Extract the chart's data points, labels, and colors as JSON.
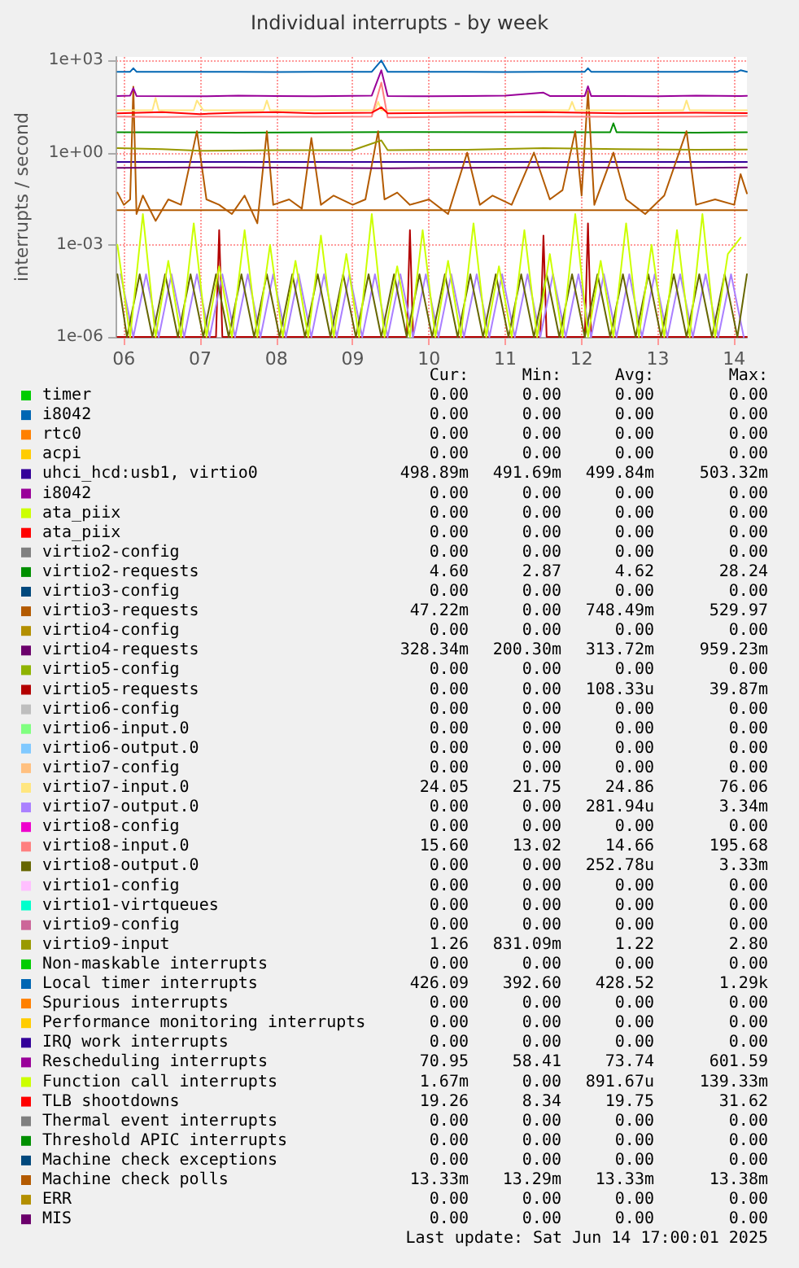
{
  "chart_data": {
    "type": "line",
    "title": "Individual interrupts - by week",
    "ylabel": "interrupts / second",
    "log": true,
    "grid": true,
    "legend": "bottom",
    "marker": "none",
    "line_style": "solid",
    "xlim": [
      "2025-06-05T21:40",
      "2025-06-14T04:00"
    ],
    "xticks": [
      {
        "value": "2025-06-06T00:00",
        "label": "06"
      },
      {
        "value": "2025-06-07T00:00",
        "label": "07"
      },
      {
        "value": "2025-06-08T00:00",
        "label": "08"
      },
      {
        "value": "2025-06-09T00:00",
        "label": "09"
      },
      {
        "value": "2025-06-10T00:00",
        "label": "10"
      },
      {
        "value": "2025-06-11T00:00",
        "label": "11"
      },
      {
        "value": "2025-06-12T00:00",
        "label": "12"
      },
      {
        "value": "2025-06-13T00:00",
        "label": "13"
      },
      {
        "value": "2025-06-14T00:00",
        "label": "14"
      }
    ],
    "ylim": [
      1e-06,
      1300
    ],
    "yticks": [
      {
        "value": 1e-06,
        "label": "1e-06"
      },
      {
        "value": 0.001,
        "label": "1e-03"
      },
      {
        "value": 1,
        "label": "1e+00"
      },
      {
        "value": 1000,
        "label": "1e+03"
      }
    ],
    "series": [
      {
        "name": "timer",
        "color": "#00cc00"
      },
      {
        "name": "i8042",
        "color": "#0066b3"
      },
      {
        "name": "rtc0",
        "color": "#ff8000"
      },
      {
        "name": "acpi",
        "color": "#ffcc00"
      },
      {
        "name": "uhci_hcd:usb1, virtio0",
        "color": "#330099",
        "x": [
          "2025-06-05T22:00",
          "2025-06-09T12:00",
          "2025-06-14T04:00"
        ],
        "values": [
          0.5,
          0.5,
          0.5
        ]
      },
      {
        "name": "i8042",
        "color": "#990099"
      },
      {
        "name": "ata_piix",
        "color": "#ccff00"
      },
      {
        "name": "ata_piix",
        "color": "#ff0000"
      },
      {
        "name": "virtio2-config",
        "color": "#808080"
      },
      {
        "name": "virtio2-requests",
        "color": "#008f00",
        "x": [
          "2025-06-05T22:00",
          "2025-06-07T12:00",
          "2025-06-09T12:00",
          "2025-06-11T12:00",
          "2025-06-12T09:00",
          "2025-06-12T10:00",
          "2025-06-12T11:00",
          "2025-06-13T12:00",
          "2025-06-14T04:00"
        ],
        "values": [
          4.6,
          4.5,
          4.7,
          4.6,
          4.6,
          9,
          4.6,
          4.5,
          4.6
        ]
      },
      {
        "name": "virtio3-config",
        "color": "#00487d"
      },
      {
        "name": "virtio3-requests",
        "color": "#b35a00",
        "x": [
          "2025-06-05T22:00",
          "2025-06-06T00:00",
          "2025-06-06T02:00",
          "2025-06-06T03:00",
          "2025-06-06T04:00",
          "2025-06-06T06:00",
          "2025-06-06T10:00",
          "2025-06-06T14:00",
          "2025-06-06T18:00",
          "2025-06-06T23:00",
          "2025-06-07T02:00",
          "2025-06-07T06:00",
          "2025-06-07T10:00",
          "2025-06-07T14:00",
          "2025-06-07T18:00",
          "2025-06-07T21:00",
          "2025-06-07T23:00",
          "2025-06-08T04:00",
          "2025-06-08T08:00",
          "2025-06-08T11:00",
          "2025-06-08T14:00",
          "2025-06-08T18:00",
          "2025-06-09T00:00",
          "2025-06-09T04:00",
          "2025-06-09T08:00",
          "2025-06-09T10:00",
          "2025-06-09T14:00",
          "2025-06-09T18:00",
          "2025-06-10T00:00",
          "2025-06-10T06:00",
          "2025-06-10T12:00",
          "2025-06-10T16:00",
          "2025-06-10T20:00",
          "2025-06-11T02:00",
          "2025-06-11T09:00",
          "2025-06-11T14:00",
          "2025-06-11T18:00",
          "2025-06-11T22:00",
          "2025-06-12T00:00",
          "2025-06-12T02:00",
          "2025-06-12T04:00",
          "2025-06-12T10:00",
          "2025-06-12T14:00",
          "2025-06-12T20:00",
          "2025-06-13T02:00",
          "2025-06-13T09:00",
          "2025-06-13T12:00",
          "2025-06-13T18:00",
          "2025-06-14T00:00",
          "2025-06-14T02:00",
          "2025-06-14T04:00"
        ],
        "values": [
          0.05,
          0.02,
          0.03,
          140,
          0.01,
          0.04,
          0.006,
          0.03,
          0.02,
          5,
          0.03,
          0.02,
          0.01,
          0.04,
          0.005,
          5,
          0.02,
          0.03,
          0.015,
          3,
          0.02,
          0.04,
          0.02,
          0.03,
          5,
          0.03,
          0.05,
          0.02,
          0.03,
          0.01,
          1,
          0.02,
          0.04,
          0.02,
          1,
          0.03,
          0.06,
          5,
          0.04,
          100,
          0.02,
          1,
          0.03,
          0.01,
          0.04,
          5,
          0.02,
          0.03,
          0.02,
          0.2,
          0.047
        ]
      },
      {
        "name": "virtio4-config",
        "color": "#b38f00"
      },
      {
        "name": "virtio4-requests",
        "color": "#6b006b",
        "x": [
          "2025-06-05T22:00",
          "2025-06-07T12:00",
          "2025-06-09T12:00",
          "2025-06-11T12:00",
          "2025-06-13T12:00",
          "2025-06-14T04:00"
        ],
        "values": [
          0.32,
          0.33,
          0.31,
          0.33,
          0.32,
          0.33
        ]
      },
      {
        "name": "virtio5-config",
        "color": "#8fb300"
      },
      {
        "name": "virtio5-requests",
        "color": "#b30000",
        "x": [
          "2025-06-05T22:00",
          "2025-06-07T05:00",
          "2025-06-07T06:00",
          "2025-06-07T07:00",
          "2025-06-09T17:00",
          "2025-06-09T18:00",
          "2025-06-09T19:00",
          "2025-06-11T11:00",
          "2025-06-11T12:00",
          "2025-06-11T13:00",
          "2025-06-12T01:00",
          "2025-06-12T02:00",
          "2025-06-12T03:00",
          "2025-06-14T04:00"
        ],
        "values": [
          1e-06,
          1e-06,
          0.003,
          1e-06,
          1e-06,
          0.003,
          1e-06,
          1e-06,
          0.002,
          1e-06,
          1e-06,
          0.005,
          1e-06,
          1e-06
        ]
      },
      {
        "name": "virtio6-config",
        "color": "#bebebe"
      },
      {
        "name": "virtio6-input.0",
        "color": "#80ff80"
      },
      {
        "name": "virtio6-output.0",
        "color": "#80c9ff"
      },
      {
        "name": "virtio7-config",
        "color": "#ffc080"
      },
      {
        "name": "virtio7-input.0",
        "color": "#ffe680",
        "x": [
          "2025-06-05T22:00",
          "2025-06-06T09:00",
          "2025-06-06T10:00",
          "2025-06-06T11:00",
          "2025-06-06T22:00",
          "2025-06-06T23:00",
          "2025-06-07T01:00",
          "2025-06-07T20:00",
          "2025-06-07T21:00",
          "2025-06-07T22:00",
          "2025-06-08T12:00",
          "2025-06-09T07:00",
          "2025-06-09T08:00",
          "2025-06-09T09:00",
          "2025-06-10T12:00",
          "2025-06-11T20:00",
          "2025-06-11T21:00",
          "2025-06-11T22:00",
          "2025-06-13T08:00",
          "2025-06-13T09:00",
          "2025-06-13T10:00",
          "2025-06-14T04:00"
        ],
        "values": [
          24,
          24,
          60,
          24,
          24,
          50,
          24,
          24,
          50,
          24,
          24,
          24,
          45,
          24,
          24,
          24,
          45,
          24,
          24,
          50,
          24,
          24.05
        ]
      },
      {
        "name": "virtio7-output.0",
        "color": "#aa80ff",
        "x": [
          "2025-06-05T23:00",
          "2025-06-06T03:00",
          "2025-06-06T07:00",
          "2025-06-06T11:00",
          "2025-06-06T15:00",
          "2025-06-06T19:00",
          "2025-06-06T23:00",
          "2025-06-07T03:00",
          "2025-06-07T07:00",
          "2025-06-07T11:00",
          "2025-06-07T15:00",
          "2025-06-07T19:00",
          "2025-06-07T23:00",
          "2025-06-08T03:00",
          "2025-06-08T07:00",
          "2025-06-08T11:00",
          "2025-06-08T15:00",
          "2025-06-08T19:00",
          "2025-06-08T23:00",
          "2025-06-09T03:00",
          "2025-06-09T07:00",
          "2025-06-09T11:00",
          "2025-06-09T15:00",
          "2025-06-09T19:00",
          "2025-06-09T23:00",
          "2025-06-10T03:00",
          "2025-06-10T07:00",
          "2025-06-10T11:00",
          "2025-06-10T15:00",
          "2025-06-10T19:00",
          "2025-06-10T23:00",
          "2025-06-11T03:00",
          "2025-06-11T07:00",
          "2025-06-11T11:00",
          "2025-06-11T15:00",
          "2025-06-11T19:00",
          "2025-06-11T23:00",
          "2025-06-12T03:00",
          "2025-06-12T07:00",
          "2025-06-12T11:00",
          "2025-06-12T15:00",
          "2025-06-12T19:00",
          "2025-06-12T23:00",
          "2025-06-13T03:00",
          "2025-06-13T07:00",
          "2025-06-13T11:00",
          "2025-06-13T15:00",
          "2025-06-13T19:00",
          "2025-06-13T23:00",
          "2025-06-14T03:00"
        ],
        "values": [
          0.00011,
          1e-06,
          0.00011,
          1e-06,
          0.00011,
          1e-06,
          0.00011,
          1e-06,
          0.00011,
          1e-06,
          0.00011,
          1e-06,
          0.00011,
          1e-06,
          0.00011,
          1e-06,
          0.00011,
          1e-06,
          0.00011,
          1e-06,
          0.00011,
          1e-06,
          0.00011,
          1e-06,
          0.00011,
          1e-06,
          0.00011,
          1e-06,
          0.00011,
          1e-06,
          0.00011,
          1e-06,
          0.00011,
          1e-06,
          0.00011,
          1e-06,
          0.00011,
          1e-06,
          0.00011,
          1e-06,
          0.00011,
          1e-06,
          0.00011,
          1e-06,
          0.00011,
          1e-06,
          0.00011,
          1e-06,
          0.00011,
          1e-06
        ]
      },
      {
        "name": "virtio8-config",
        "color": "#ee00cc"
      },
      {
        "name": "virtio8-input.0",
        "color": "#ff8080",
        "x": [
          "2025-06-05T22:00",
          "2025-06-06T12:00",
          "2025-06-07T12:00",
          "2025-06-08T12:00",
          "2025-06-09T06:00",
          "2025-06-09T09:00",
          "2025-06-09T11:00",
          "2025-06-10T12:00",
          "2025-06-11T12:00",
          "2025-06-12T12:00",
          "2025-06-13T12:00",
          "2025-06-14T04:00"
        ],
        "values": [
          15,
          14.5,
          15,
          14.6,
          15,
          190,
          14,
          14.8,
          15,
          14.6,
          15,
          15.6
        ]
      },
      {
        "name": "virtio8-output.0",
        "color": "#666600",
        "x": [
          "2025-06-05T22:00",
          "2025-06-06T01:00",
          "2025-06-06T05:00",
          "2025-06-06T09:00",
          "2025-06-06T13:00",
          "2025-06-06T17:00",
          "2025-06-06T21:00",
          "2025-06-07T01:00",
          "2025-06-07T05:00",
          "2025-06-07T09:00",
          "2025-06-07T13:00",
          "2025-06-07T17:00",
          "2025-06-07T21:00",
          "2025-06-08T01:00",
          "2025-06-08T05:00",
          "2025-06-08T09:00",
          "2025-06-08T13:00",
          "2025-06-08T17:00",
          "2025-06-08T21:00",
          "2025-06-09T01:00",
          "2025-06-09T05:00",
          "2025-06-09T09:00",
          "2025-06-09T13:00",
          "2025-06-09T17:00",
          "2025-06-09T21:00",
          "2025-06-10T01:00",
          "2025-06-10T05:00",
          "2025-06-10T09:00",
          "2025-06-10T13:00",
          "2025-06-10T17:00",
          "2025-06-10T21:00",
          "2025-06-11T01:00",
          "2025-06-11T05:00",
          "2025-06-11T09:00",
          "2025-06-11T13:00",
          "2025-06-11T17:00",
          "2025-06-11T21:00",
          "2025-06-12T01:00",
          "2025-06-12T05:00",
          "2025-06-12T09:00",
          "2025-06-12T13:00",
          "2025-06-12T17:00",
          "2025-06-12T21:00",
          "2025-06-13T01:00",
          "2025-06-13T05:00",
          "2025-06-13T09:00",
          "2025-06-13T13:00",
          "2025-06-13T17:00",
          "2025-06-13T21:00",
          "2025-06-14T01:00",
          "2025-06-14T04:00"
        ],
        "values": [
          0.00011,
          1e-06,
          0.00011,
          1e-06,
          0.00011,
          1e-06,
          0.00011,
          1e-06,
          0.00011,
          1e-06,
          0.00011,
          1e-06,
          0.00011,
          1e-06,
          0.00011,
          1e-06,
          0.00011,
          1e-06,
          0.00011,
          1e-06,
          0.00011,
          1e-06,
          0.00011,
          1e-06,
          0.00011,
          1e-06,
          0.00011,
          1e-06,
          0.00011,
          1e-06,
          0.00011,
          1e-06,
          0.00011,
          1e-06,
          0.00011,
          1e-06,
          0.00011,
          1e-06,
          0.00011,
          1e-06,
          0.00011,
          1e-06,
          0.00011,
          1e-06,
          0.00011,
          1e-06,
          0.00011,
          1e-06,
          0.00011,
          1e-06,
          0.00011
        ]
      },
      {
        "name": "virtio1-config",
        "color": "#ffbfff"
      },
      {
        "name": "virtio1-virtqueues",
        "color": "#00ffcc"
      },
      {
        "name": "virtio9-config",
        "color": "#cc6699"
      },
      {
        "name": "virtio9-input",
        "color": "#999900",
        "x": [
          "2025-06-05T22:00",
          "2025-06-06T12:00",
          "2025-06-07T00:00",
          "2025-06-08T00:00",
          "2025-06-09T00:00",
          "2025-06-09T09:00",
          "2025-06-09T11:00",
          "2025-06-10T12:00",
          "2025-06-11T12:00",
          "2025-06-12T12:00",
          "2025-06-13T12:00",
          "2025-06-14T04:00"
        ],
        "values": [
          1.4,
          1.3,
          1.15,
          1.2,
          1.2,
          2.5,
          1.2,
          1.25,
          1.4,
          1.3,
          1.25,
          1.26
        ]
      },
      {
        "name": "Non-maskable interrupts",
        "color": "#00cc00"
      },
      {
        "name": "Local timer interrupts",
        "color": "#0066b3",
        "x": [
          "2025-06-05T22:00",
          "2025-06-06T02:00",
          "2025-06-06T03:00",
          "2025-06-06T04:00",
          "2025-06-07T00:00",
          "2025-06-07T12:00",
          "2025-06-08T00:00",
          "2025-06-08T12:00",
          "2025-06-09T06:00",
          "2025-06-09T09:00",
          "2025-06-09T11:00",
          "2025-06-10T00:00",
          "2025-06-10T12:00",
          "2025-06-11T00:00",
          "2025-06-11T12:00",
          "2025-06-12T01:00",
          "2025-06-12T02:00",
          "2025-06-12T03:00",
          "2025-06-13T00:00",
          "2025-06-13T12:00",
          "2025-06-14T01:00",
          "2025-06-14T02:00",
          "2025-06-14T04:00"
        ],
        "values": [
          430,
          430,
          560,
          430,
          425,
          430,
          420,
          430,
          430,
          1000,
          430,
          425,
          430,
          420,
          430,
          430,
          560,
          430,
          425,
          430,
          430,
          480,
          426
        ]
      },
      {
        "name": "Spurious interrupts",
        "color": "#ff8000"
      },
      {
        "name": "Performance monitoring interrupts",
        "color": "#ffcc00"
      },
      {
        "name": "IRQ work interrupts",
        "color": "#330099"
      },
      {
        "name": "Rescheduling interrupts",
        "color": "#990099",
        "x": [
          "2025-06-05T22:00",
          "2025-06-06T02:00",
          "2025-06-06T03:00",
          "2025-06-06T04:00",
          "2025-06-07T00:00",
          "2025-06-07T12:00",
          "2025-06-08T00:00",
          "2025-06-08T12:00",
          "2025-06-09T06:00",
          "2025-06-09T09:00",
          "2025-06-09T11:00",
          "2025-06-10T00:00",
          "2025-06-10T12:00",
          "2025-06-11T00:00",
          "2025-06-11T12:00",
          "2025-06-11T14:00",
          "2025-06-12T01:00",
          "2025-06-12T02:00",
          "2025-06-12T03:00",
          "2025-06-13T00:00",
          "2025-06-13T12:00",
          "2025-06-14T02:00",
          "2025-06-14T04:00"
        ],
        "values": [
          70,
          72,
          125,
          70,
          68,
          72,
          70,
          68,
          72,
          480,
          70,
          68,
          70,
          72,
          90,
          70,
          70,
          145,
          70,
          68,
          72,
          70,
          71
        ]
      },
      {
        "name": "Function call interrupts",
        "color": "#ccff00",
        "x": [
          "2025-06-05T22:00",
          "2025-06-06T02:00",
          "2025-06-06T06:00",
          "2025-06-06T10:00",
          "2025-06-06T14:00",
          "2025-06-06T18:00",
          "2025-06-06T22:00",
          "2025-06-07T02:00",
          "2025-06-07T06:00",
          "2025-06-07T10:00",
          "2025-06-07T14:00",
          "2025-06-07T18:00",
          "2025-06-07T22:00",
          "2025-06-08T02:00",
          "2025-06-08T06:00",
          "2025-06-08T10:00",
          "2025-06-08T14:00",
          "2025-06-08T18:00",
          "2025-06-08T22:00",
          "2025-06-09T02:00",
          "2025-06-09T06:00",
          "2025-06-09T10:00",
          "2025-06-09T14:00",
          "2025-06-09T18:00",
          "2025-06-09T22:00",
          "2025-06-10T02:00",
          "2025-06-10T06:00",
          "2025-06-10T10:00",
          "2025-06-10T14:00",
          "2025-06-10T18:00",
          "2025-06-10T22:00",
          "2025-06-11T02:00",
          "2025-06-11T06:00",
          "2025-06-11T10:00",
          "2025-06-11T14:00",
          "2025-06-11T18:00",
          "2025-06-11T22:00",
          "2025-06-12T02:00",
          "2025-06-12T06:00",
          "2025-06-12T10:00",
          "2025-06-12T14:00",
          "2025-06-12T18:00",
          "2025-06-12T22:00",
          "2025-06-13T02:00",
          "2025-06-13T06:00",
          "2025-06-13T10:00",
          "2025-06-13T14:00",
          "2025-06-13T18:00",
          "2025-06-13T22:00",
          "2025-06-14T02:00"
        ],
        "values": [
          0.001,
          1e-06,
          0.01,
          1e-06,
          0.0003,
          1e-06,
          0.005,
          1e-06,
          0.0002,
          1e-06,
          0.003,
          1e-06,
          0.001,
          1e-06,
          0.0003,
          1e-06,
          0.002,
          1e-06,
          0.0005,
          1e-06,
          0.01,
          1e-06,
          0.0002,
          1e-06,
          0.003,
          1e-06,
          0.0003,
          1e-06,
          0.005,
          1e-06,
          0.0002,
          1e-06,
          0.003,
          1e-06,
          0.0005,
          1e-06,
          0.01,
          1e-06,
          0.0003,
          1e-06,
          0.005,
          1e-06,
          0.001,
          1e-06,
          0.003,
          1e-06,
          0.01,
          1e-06,
          0.0005,
          0.0017
        ]
      },
      {
        "name": "TLB shootdowns",
        "color": "#ff0000",
        "x": [
          "2025-06-05T22:00",
          "2025-06-06T12:00",
          "2025-06-07T00:00",
          "2025-06-07T12:00",
          "2025-06-08T00:00",
          "2025-06-08T12:00",
          "2025-06-09T06:00",
          "2025-06-09T09:00",
          "2025-06-09T11:00",
          "2025-06-10T12:00",
          "2025-06-11T12:00",
          "2025-06-12T12:00",
          "2025-06-13T12:00",
          "2025-06-14T04:00"
        ],
        "values": [
          19,
          21,
          18,
          20,
          21,
          19,
          20,
          30,
          19,
          20,
          21,
          19,
          20,
          19.26
        ]
      },
      {
        "name": "Thermal event interrupts",
        "color": "#808080"
      },
      {
        "name": "Threshold APIC interrupts",
        "color": "#008f00"
      },
      {
        "name": "Machine check exceptions",
        "color": "#00487d"
      },
      {
        "name": "Machine check polls",
        "color": "#b35a00",
        "x": [
          "2025-06-05T22:00",
          "2025-06-09T12:00",
          "2025-06-14T04:00"
        ],
        "values": [
          0.0133,
          0.0133,
          0.0133
        ]
      },
      {
        "name": "ERR",
        "color": "#b38f00"
      },
      {
        "name": "MIS",
        "color": "#6b006b"
      }
    ],
    "annotations": [
      "Cur:",
      "Min:",
      "Avg:",
      "Max:",
      "0.00",
      "0.00",
      "0.00",
      "0.00",
      "0.00",
      "0.00",
      "0.00",
      "0.00",
      "0.00",
      "0.00",
      "0.00",
      "0.00",
      "0.00",
      "0.00",
      "0.00",
      "0.00",
      "498.89m",
      "491.69m",
      "499.84m",
      "503.32m",
      "0.00",
      "0.00",
      "0.00",
      "0.00",
      "0.00",
      "0.00",
      "0.00",
      "0.00",
      "0.00",
      "0.00",
      "0.00",
      "0.00",
      "0.00",
      "0.00",
      "0.00",
      "0.00",
      "4.60",
      "2.87",
      "4.62",
      "28.24",
      "0.00",
      "0.00",
      "0.00",
      "0.00",
      "47.22m",
      "0.00",
      "748.49m",
      "529.97",
      "0.00",
      "0.00",
      "0.00",
      "0.00",
      "328.34m",
      "200.30m",
      "313.72m",
      "959.23m",
      "0.00",
      "0.00",
      "0.00",
      "0.00",
      "0.00",
      "0.00",
      "108.33u",
      "39.87m",
      "0.00",
      "0.00",
      "0.00",
      "0.00",
      "0.00",
      "0.00",
      "0.00",
      "0.00",
      "0.00",
      "0.00",
      "0.00",
      "0.00",
      "0.00",
      "0.00",
      "0.00",
      "0.00",
      "24.05",
      "21.75",
      "24.86",
      "76.06",
      "0.00",
      "0.00",
      "281.94u",
      "3.34m",
      "0.00",
      "0.00",
      "0.00",
      "0.00",
      "15.60",
      "13.02",
      "14.66",
      "195.68",
      "0.00",
      "0.00",
      "252.78u",
      "3.33m",
      "0.00",
      "0.00",
      "0.00",
      "0.00",
      "0.00",
      "0.00",
      "0.00",
      "0.00",
      "0.00",
      "0.00",
      "0.00",
      "0.00",
      "1.26",
      "831.09m",
      "1.22",
      "2.80",
      "0.00",
      "0.00",
      "0.00",
      "0.00",
      "426.09",
      "392.60",
      "428.52",
      "1.29k",
      "0.00",
      "0.00",
      "0.00",
      "0.00",
      "0.00",
      "0.00",
      "0.00",
      "0.00",
      "0.00",
      "0.00",
      "0.00",
      "0.00",
      "70.95",
      "58.41",
      "73.74",
      "601.59",
      "1.67m",
      "0.00",
      "891.67u",
      "139.33m",
      "19.26",
      "8.34",
      "19.75",
      "31.62",
      "0.00",
      "0.00",
      "0.00",
      "0.00",
      "0.00",
      "0.00",
      "0.00",
      "0.00",
      "0.00",
      "0.00",
      "0.00",
      "0.00",
      "13.33m",
      "13.29m",
      "13.33m",
      "13.38m",
      "0.00",
      "0.00",
      "0.00",
      "0.00",
      "0.00",
      "0.00",
      "0.00",
      "0.00",
      "Last update: Sat Jun 14 17:00:01 2025"
    ]
  }
}
